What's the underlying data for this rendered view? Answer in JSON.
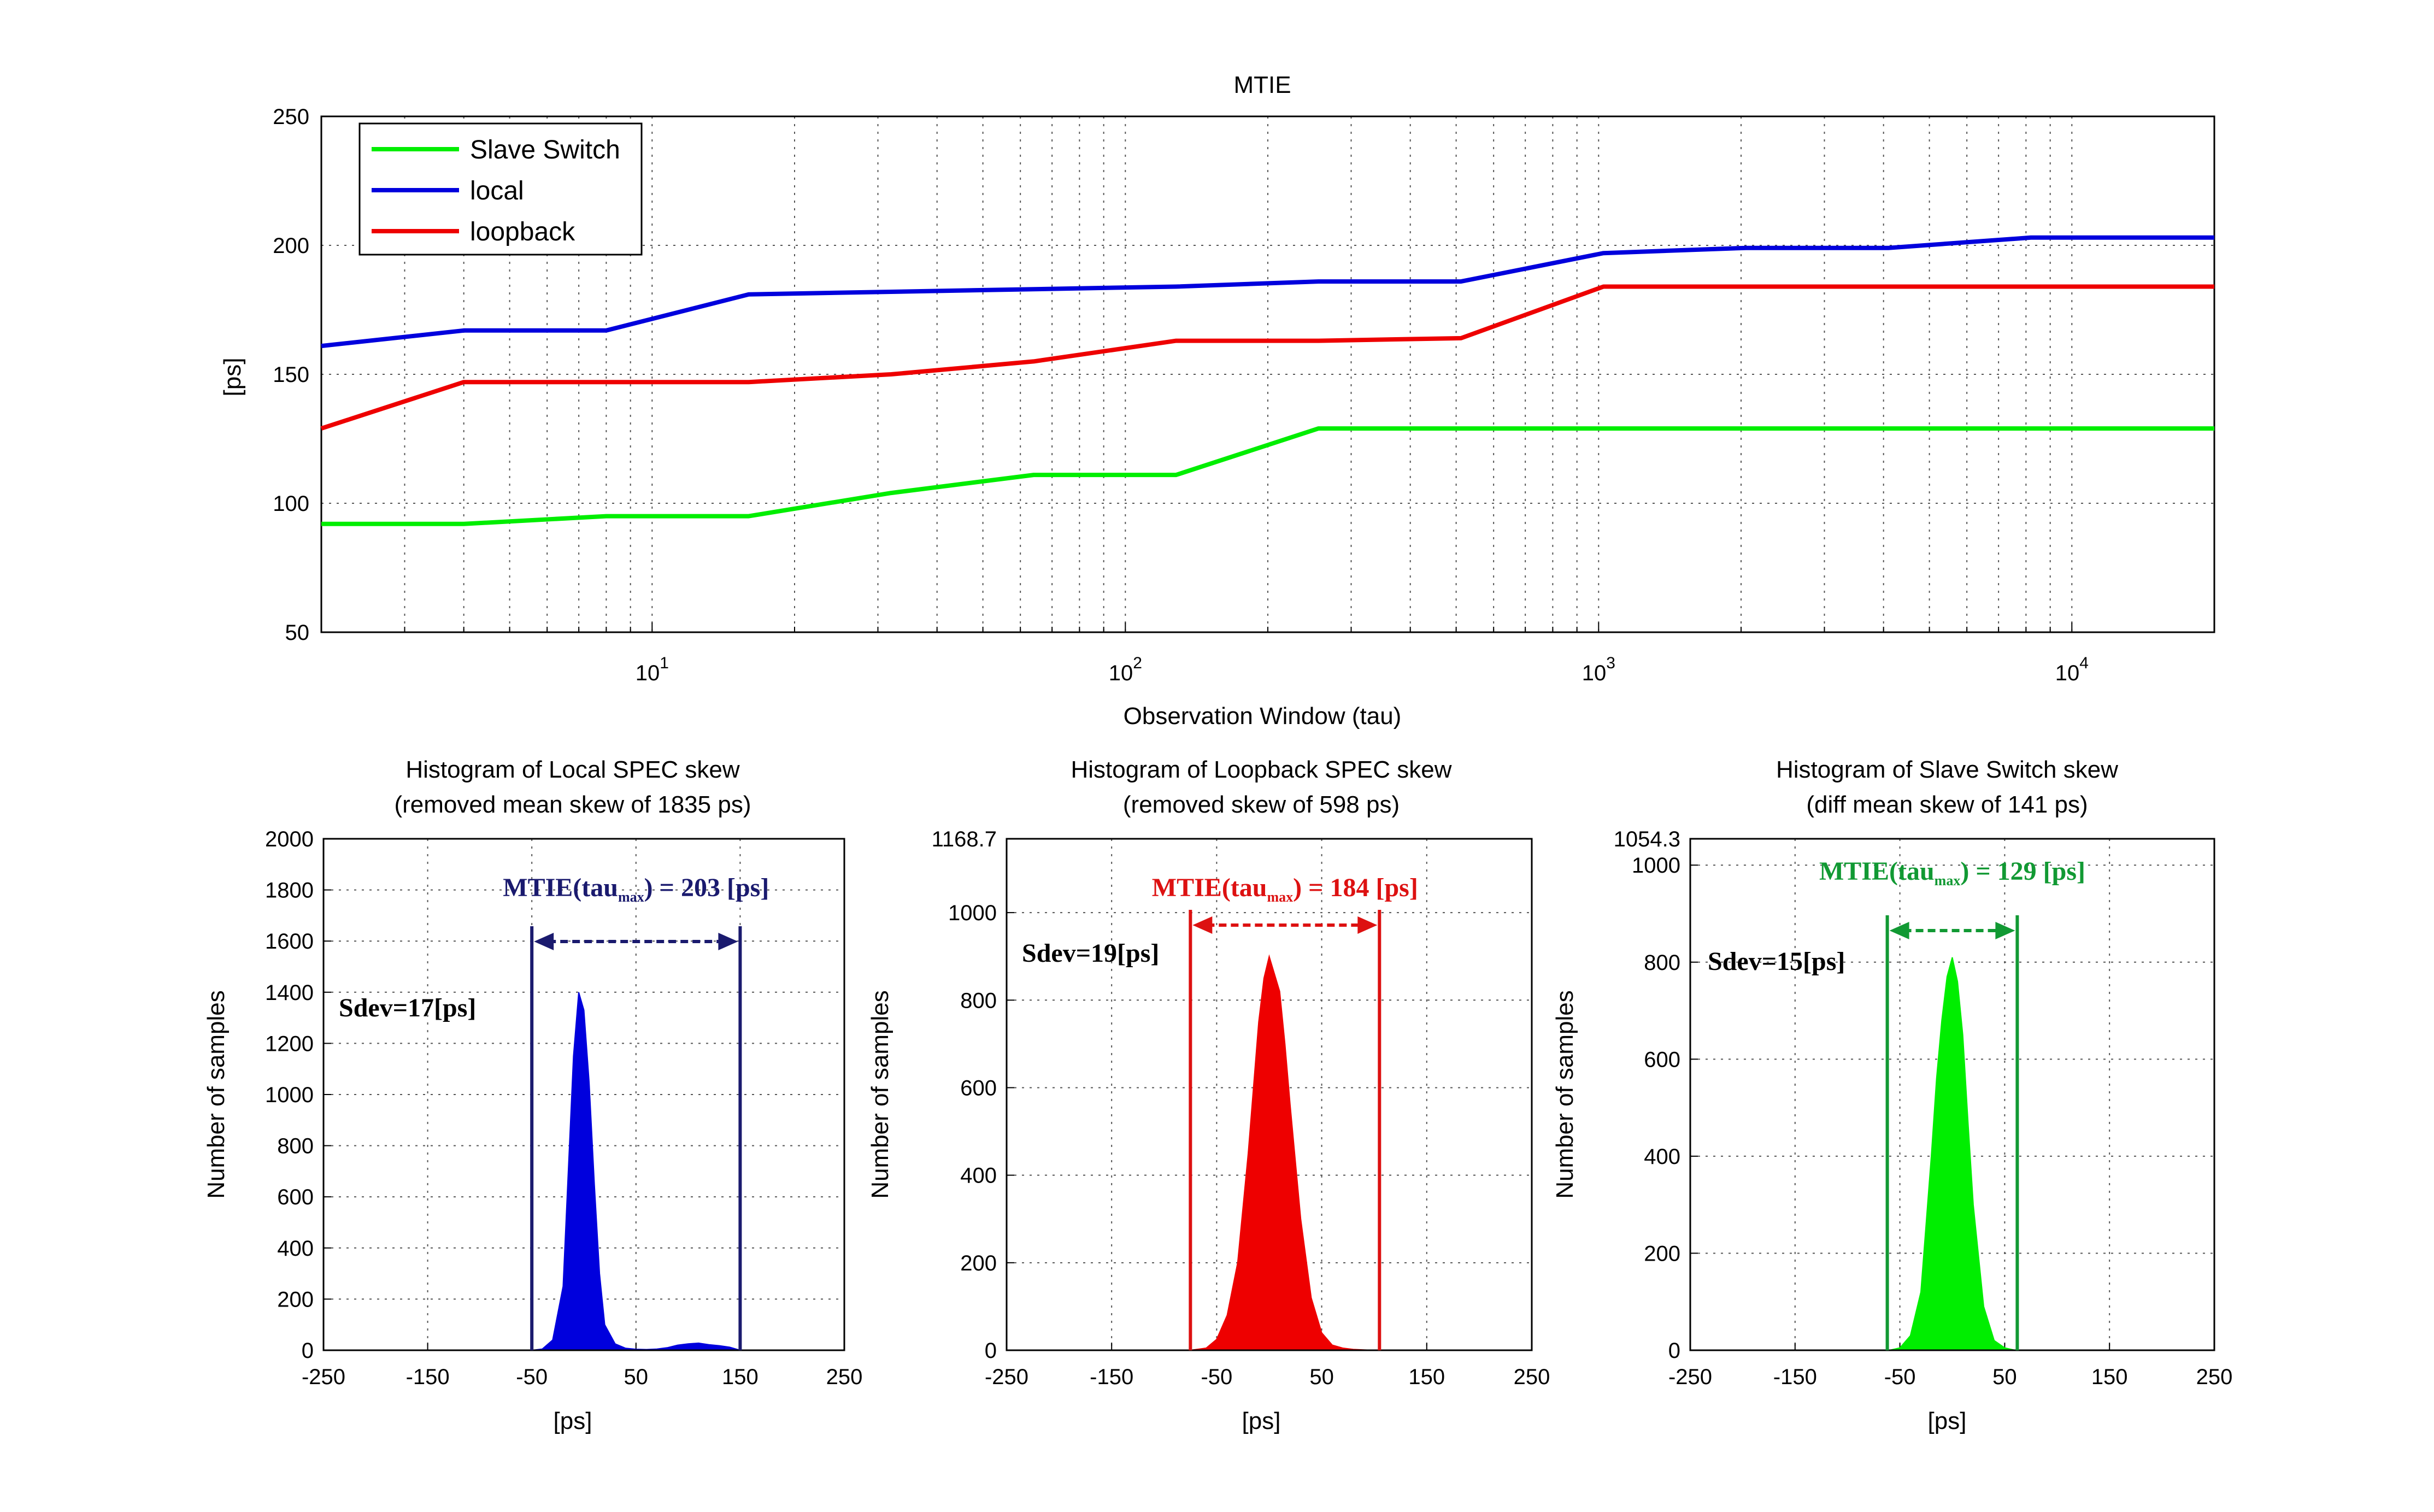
{
  "figure": {
    "colors": {
      "blue": "#0000dd",
      "red": "#ee0000",
      "green": "#00ee00",
      "navy": "#1a1a6e",
      "ann_red": "#dd1111",
      "ann_green": "#119933"
    }
  },
  "chart_data": [
    {
      "type": "line",
      "title": "MTIE",
      "xlabel": "Observation Window (tau)",
      "ylabel": "[ps]",
      "x_scale": "log",
      "xlim": [
        2,
        20000
      ],
      "ylim": [
        50,
        250
      ],
      "yticks": [
        "50",
        "100",
        "150",
        "200",
        "250"
      ],
      "xticks": [
        {
          "base": "10",
          "exp": "1"
        },
        {
          "base": "10",
          "exp": "2"
        },
        {
          "base": "10",
          "exp": "3"
        },
        {
          "base": "10",
          "exp": "4"
        }
      ],
      "grid": true,
      "legend_position": "top-left",
      "series": [
        {
          "name": "Slave Switch",
          "color": "#00ee00",
          "x": [
            2,
            4,
            8,
            16,
            32,
            64,
            128,
            256,
            512,
            1024,
            2048,
            4096,
            8192,
            20000
          ],
          "y": [
            92,
            92,
            95,
            95,
            104,
            111,
            111,
            129,
            129,
            129,
            129,
            129,
            129,
            129
          ]
        },
        {
          "name": "local",
          "color": "#0000dd",
          "x": [
            2,
            4,
            8,
            16,
            32,
            64,
            128,
            256,
            512,
            1024,
            2048,
            4096,
            8192,
            20000
          ],
          "y": [
            161,
            167,
            167,
            181,
            182,
            183,
            184,
            186,
            186,
            197,
            199,
            199,
            203,
            203
          ]
        },
        {
          "name": "loopback",
          "color": "#ee0000",
          "x": [
            2,
            4,
            8,
            16,
            32,
            64,
            128,
            256,
            512,
            1024,
            2048,
            4096,
            8192,
            20000
          ],
          "y": [
            129,
            147,
            147,
            147,
            150,
            155,
            163,
            163,
            164,
            184,
            184,
            184,
            184,
            184
          ]
        }
      ]
    },
    {
      "type": "bar",
      "title": "Histogram of Local SPEC skew",
      "subtitle": "(removed mean skew of 1835 ps)",
      "xlabel": "[ps]",
      "ylabel": "Number of samples",
      "xlim": [
        -250,
        250
      ],
      "ylim": [
        0,
        2000
      ],
      "xticks": [
        "-250",
        "-150",
        "-50",
        "50",
        "150",
        "250"
      ],
      "yticks": [
        "0",
        "200",
        "400",
        "600",
        "800",
        "1000",
        "1200",
        "1400",
        "1600",
        "1800",
        "2000"
      ],
      "grid": true,
      "color": "#0000dd",
      "x": [
        -50,
        -40,
        -30,
        -20,
        -15,
        -10,
        -5,
        0,
        5,
        10,
        15,
        20,
        30,
        40,
        50,
        60,
        70,
        80,
        90,
        100,
        110,
        120,
        130,
        140,
        150
      ],
      "values": [
        0,
        5,
        40,
        250,
        700,
        1150,
        1400,
        1330,
        1050,
        650,
        300,
        100,
        25,
        8,
        4,
        3,
        5,
        10,
        20,
        25,
        28,
        22,
        18,
        12,
        0
      ],
      "annotations": {
        "mtie_label": "MTIE(tau",
        "mtie_sub": "max",
        "mtie_value": ") = 203 [ps]",
        "sdev": "Sdev=17[ps]",
        "bracket_x": [
          -50,
          150
        ]
      }
    },
    {
      "type": "bar",
      "title": "Histogram of Loopback SPEC skew",
      "subtitle": "(removed skew of 598 ps)",
      "xlabel": "[ps]",
      "ylabel": "Number of samples",
      "xlim": [
        -250,
        250
      ],
      "ylim": [
        0,
        1168.7
      ],
      "xticks": [
        "-250",
        "-150",
        "-50",
        "50",
        "150",
        "250"
      ],
      "yticks": [
        "0",
        "200",
        "400",
        "600",
        "800",
        "1000",
        "1168.7"
      ],
      "grid": true,
      "color": "#ee0000",
      "x": [
        -75,
        -60,
        -50,
        -40,
        -30,
        -20,
        -10,
        -5,
        0,
        5,
        10,
        15,
        20,
        30,
        40,
        50,
        60,
        70,
        80,
        90,
        100
      ],
      "values": [
        0,
        5,
        25,
        80,
        200,
        450,
        750,
        850,
        900,
        860,
        820,
        700,
        560,
        300,
        120,
        40,
        12,
        5,
        2,
        1,
        0
      ],
      "annotations": {
        "mtie_label": "MTIE(tau",
        "mtie_sub": "max",
        "mtie_value": ") = 184 [ps]",
        "sdev": "Sdev=19[ps]",
        "bracket_x": [
          -75,
          105
        ]
      }
    },
    {
      "type": "bar",
      "title": "Histogram of Slave Switch skew",
      "subtitle": "(diff mean skew of 141 ps)",
      "xlabel": "[ps]",
      "ylabel": "Number of samples",
      "xlim": [
        -250,
        250
      ],
      "ylim": [
        0,
        1054.3
      ],
      "xticks": [
        "-250",
        "-150",
        "-50",
        "50",
        "150",
        "250"
      ],
      "yticks": [
        "0",
        "200",
        "400",
        "600",
        "800",
        "1000",
        "1054.3"
      ],
      "grid": true,
      "color": "#00ee00",
      "x": [
        -60,
        -50,
        -40,
        -30,
        -20,
        -15,
        -10,
        -5,
        0,
        5,
        10,
        15,
        20,
        30,
        40,
        50,
        60
      ],
      "values": [
        0,
        5,
        30,
        120,
        400,
        560,
        680,
        770,
        810,
        760,
        650,
        470,
        300,
        90,
        20,
        5,
        0
      ],
      "annotations": {
        "mtie_label": "MTIE(tau",
        "mtie_sub": "max",
        "mtie_value": ") = 129 [ps]",
        "sdev": "Sdev=15[ps]",
        "bracket_x": [
          -62,
          62
        ]
      }
    }
  ]
}
